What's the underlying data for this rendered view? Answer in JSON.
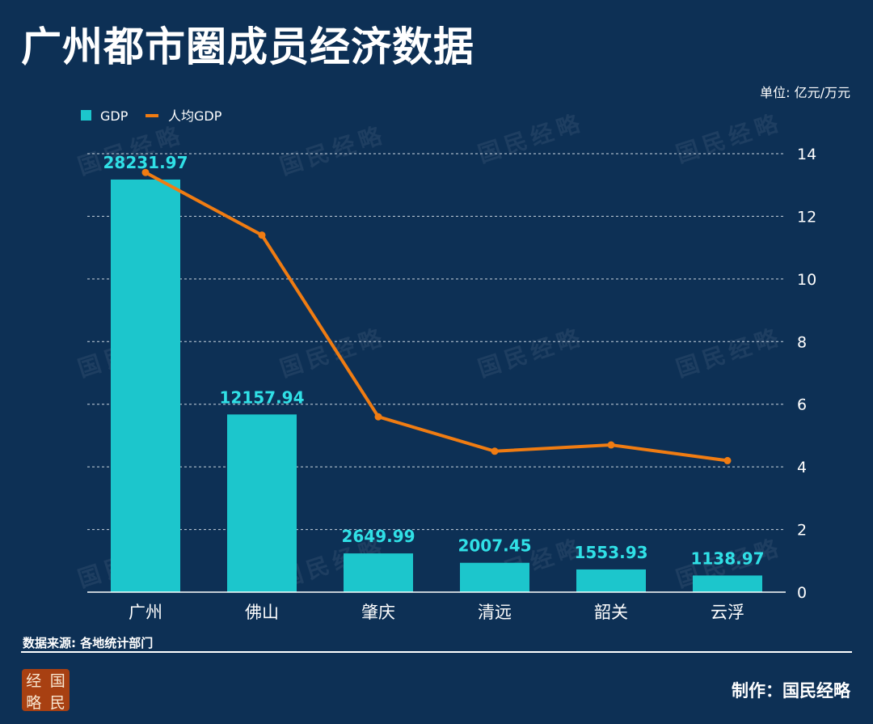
{
  "title": "广州都市圈成员经济数据",
  "unit": "单位: 亿元/万元",
  "source": "数据来源: 各地统计部门",
  "credit": "制作：国民经略",
  "logo_chars": [
    "经",
    "国",
    "略",
    "民"
  ],
  "watermark": "国民经略",
  "colors": {
    "background": "#0d3055",
    "bar": "#1cc6cc",
    "line": "#f07c12",
    "label": "#30e0e6",
    "grid": "#c9d4de"
  },
  "chart_data": {
    "type": "bar",
    "categories": [
      "广州",
      "佛山",
      "肇庆",
      "清远",
      "韶关",
      "云浮"
    ],
    "series": [
      {
        "name": "GDP",
        "type": "bar",
        "values": [
          28231.97,
          12157.94,
          2649.99,
          2007.45,
          1553.93,
          1138.97
        ],
        "labels": [
          "28231.97",
          "12157.94",
          "2649.99",
          "2007.45",
          "1553.93",
          "1138.97"
        ]
      },
      {
        "name": "人均GDP",
        "type": "line",
        "axis": "right",
        "values": [
          13.4,
          11.4,
          5.6,
          4.5,
          4.7,
          4.2
        ]
      }
    ],
    "bar_axis_range": [
      0,
      30000
    ],
    "y_right": {
      "range": [
        0,
        14
      ],
      "ticks": [
        "0",
        "2",
        "4",
        "6",
        "8",
        "10",
        "12",
        "14"
      ]
    },
    "grid": true,
    "legend_position": "top-left"
  }
}
